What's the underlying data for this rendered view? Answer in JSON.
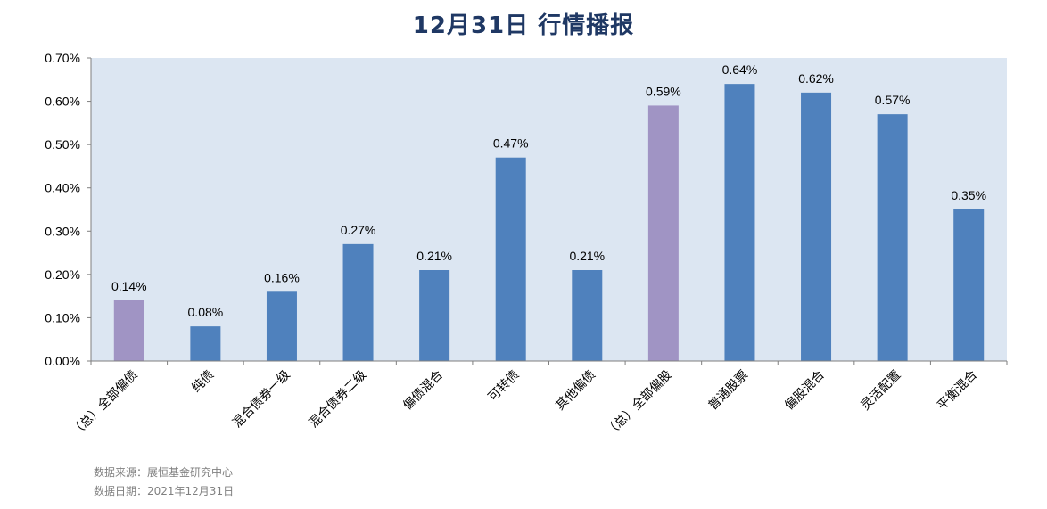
{
  "title": "12月31日  行情播报",
  "source": {
    "line1": "数据来源：展恒基金研究中心",
    "line2": "数据日期：2021年12月31日"
  },
  "colors": {
    "plot_bg": "#dce6f2",
    "bar_primary": "#4f81bd",
    "bar_total": "#a094c4",
    "title": "#1f3864"
  },
  "chart_data": {
    "type": "bar",
    "categories": [
      "（总）全部偏债",
      "纯债",
      "混合债券一级",
      "混合债券二级",
      "偏债混合",
      "可转债",
      "其他偏债",
      "（总）全部偏股",
      "普通股票",
      "偏股混合",
      "灵活配置",
      "平衡混合"
    ],
    "values": [
      0.14,
      0.08,
      0.16,
      0.27,
      0.21,
      0.47,
      0.21,
      0.59,
      0.64,
      0.62,
      0.57,
      0.35
    ],
    "data_labels": [
      "0.14%",
      "0.08%",
      "0.16%",
      "0.27%",
      "0.21%",
      "0.47%",
      "0.21%",
      "0.59%",
      "0.64%",
      "0.62%",
      "0.57%",
      "0.35%"
    ],
    "highlight": [
      true,
      false,
      false,
      false,
      false,
      false,
      false,
      true,
      false,
      false,
      false,
      false
    ],
    "y_ticks": [
      "0.00%",
      "0.10%",
      "0.20%",
      "0.30%",
      "0.40%",
      "0.50%",
      "0.60%",
      "0.70%"
    ],
    "ylim": [
      0,
      0.7
    ],
    "unit": "%",
    "grid": false,
    "legend": "none"
  }
}
